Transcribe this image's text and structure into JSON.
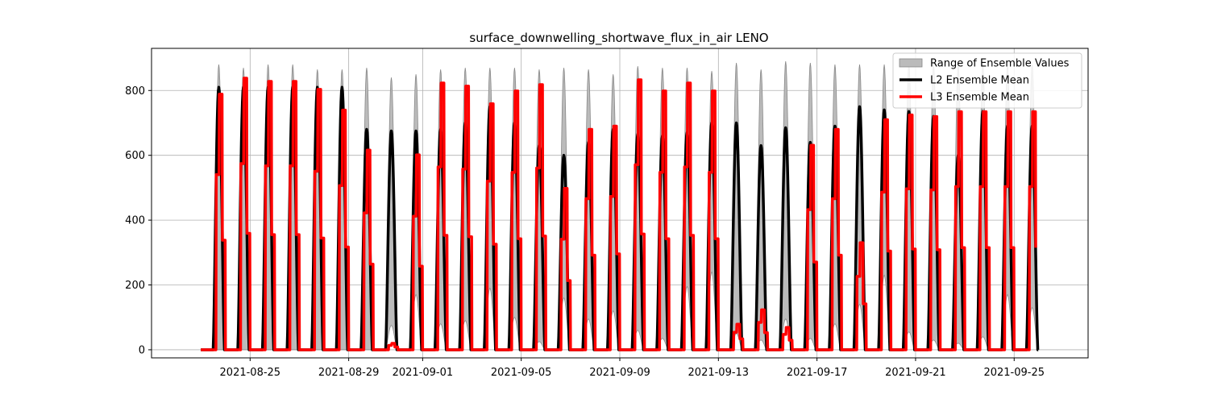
{
  "chart_data": {
    "type": "line",
    "title": "surface_downwelling_shortwave_flux_in_air LENO",
    "xlabel": "",
    "ylabel": "",
    "x_start": "2021-08-23",
    "x_end": "2021-09-26",
    "xlim": [
      "2021-08-21",
      "2021-09-28"
    ],
    "ylim": [
      -25,
      930
    ],
    "x_ticks": [
      "2021-08-25",
      "2021-08-29",
      "2021-09-01",
      "2021-09-05",
      "2021-09-09",
      "2021-09-13",
      "2021-09-17",
      "2021-09-21",
      "2021-09-25"
    ],
    "y_ticks": [
      0,
      200,
      400,
      600,
      800
    ],
    "grid": true,
    "legend_placement": "top-right",
    "series": [
      {
        "name": "Range of Ensemble Values",
        "kind": "band",
        "color": "#bbbbbb",
        "edge_color": "#888888",
        "daily_max": [
          880,
          870,
          880,
          880,
          865,
          865,
          870,
          840,
          850,
          865,
          870,
          870,
          870,
          865,
          870,
          865,
          850,
          875,
          870,
          870,
          860,
          885,
          865,
          890,
          885,
          880,
          880,
          880,
          880,
          880,
          880,
          880,
          880,
          880
        ],
        "daily_min": [
          0,
          0,
          0,
          0,
          0,
          0,
          0,
          75,
          170,
          80,
          90,
          190,
          100,
          25,
          160,
          95,
          120,
          60,
          35,
          195,
          240,
          50,
          30,
          95,
          35,
          80,
          140,
          230,
          55,
          30,
          20,
          40,
          170,
          130
        ]
      },
      {
        "name": "L2 Ensemble Mean",
        "kind": "line",
        "color": "#000000",
        "daily_peak": [
          810,
          810,
          810,
          810,
          810,
          810,
          680,
          675,
          675,
          680,
          700,
          750,
          700,
          630,
          600,
          640,
          680,
          665,
          660,
          670,
          700,
          700,
          630,
          685,
          640,
          690,
          750,
          740,
          735,
          720,
          600,
          735,
          690,
          690
        ]
      },
      {
        "name": "L3 Ensemble Mean",
        "kind": "line",
        "color": "#ff0000",
        "daily_peak": [
          800,
          850,
          840,
          840,
          815,
          750,
          625,
          20,
          610,
          835,
          825,
          770,
          810,
          830,
          505,
          690,
          700,
          845,
          810,
          835,
          810,
          80,
          125,
          70,
          640,
          690,
          335,
          720,
          735,
          730,
          745,
          745,
          745,
          745
        ]
      }
    ]
  }
}
